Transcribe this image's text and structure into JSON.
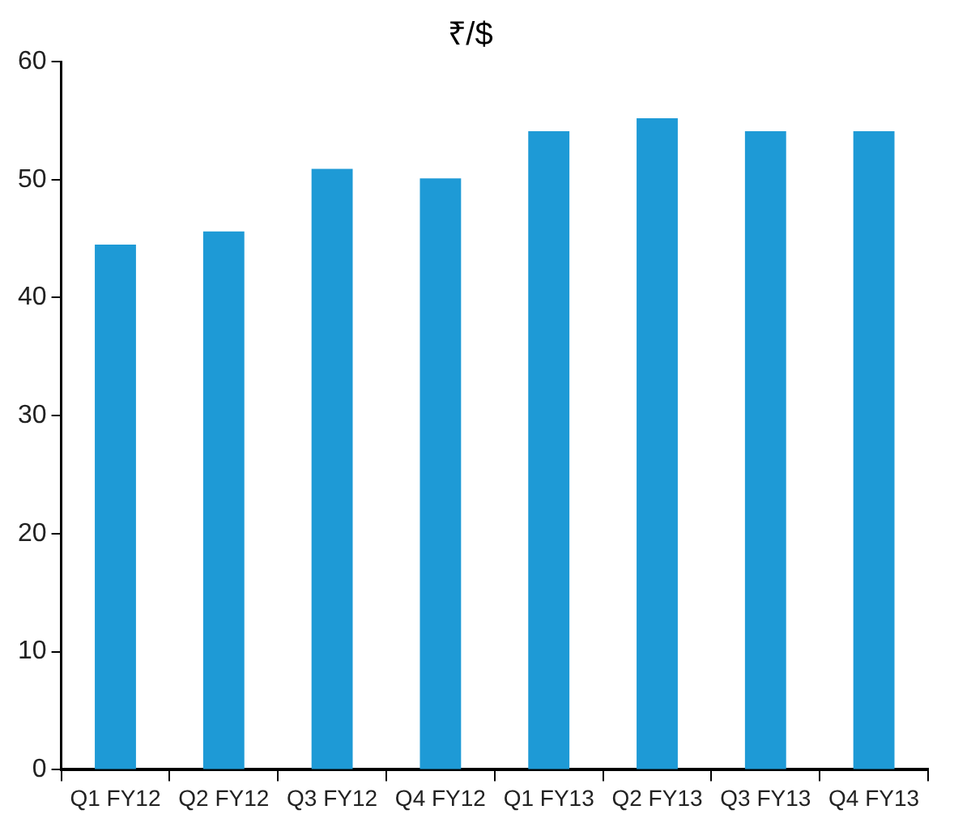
{
  "chart_data": {
    "type": "bar",
    "title": "₹/$",
    "categories": [
      "Q1 FY12",
      "Q2 FY12",
      "Q3 FY12",
      "Q4 FY12",
      "Q1 FY13",
      "Q2 FY13",
      "Q3 FY13",
      "Q4 FY13"
    ],
    "values": [
      44.5,
      45.6,
      50.9,
      50.1,
      54.1,
      55.2,
      54.1,
      54.1
    ],
    "color": "#1e9ad6",
    "ylim": [
      0,
      60
    ],
    "yticks": [
      0,
      10,
      20,
      30,
      40,
      50,
      60
    ],
    "grid": false,
    "legend": false
  }
}
